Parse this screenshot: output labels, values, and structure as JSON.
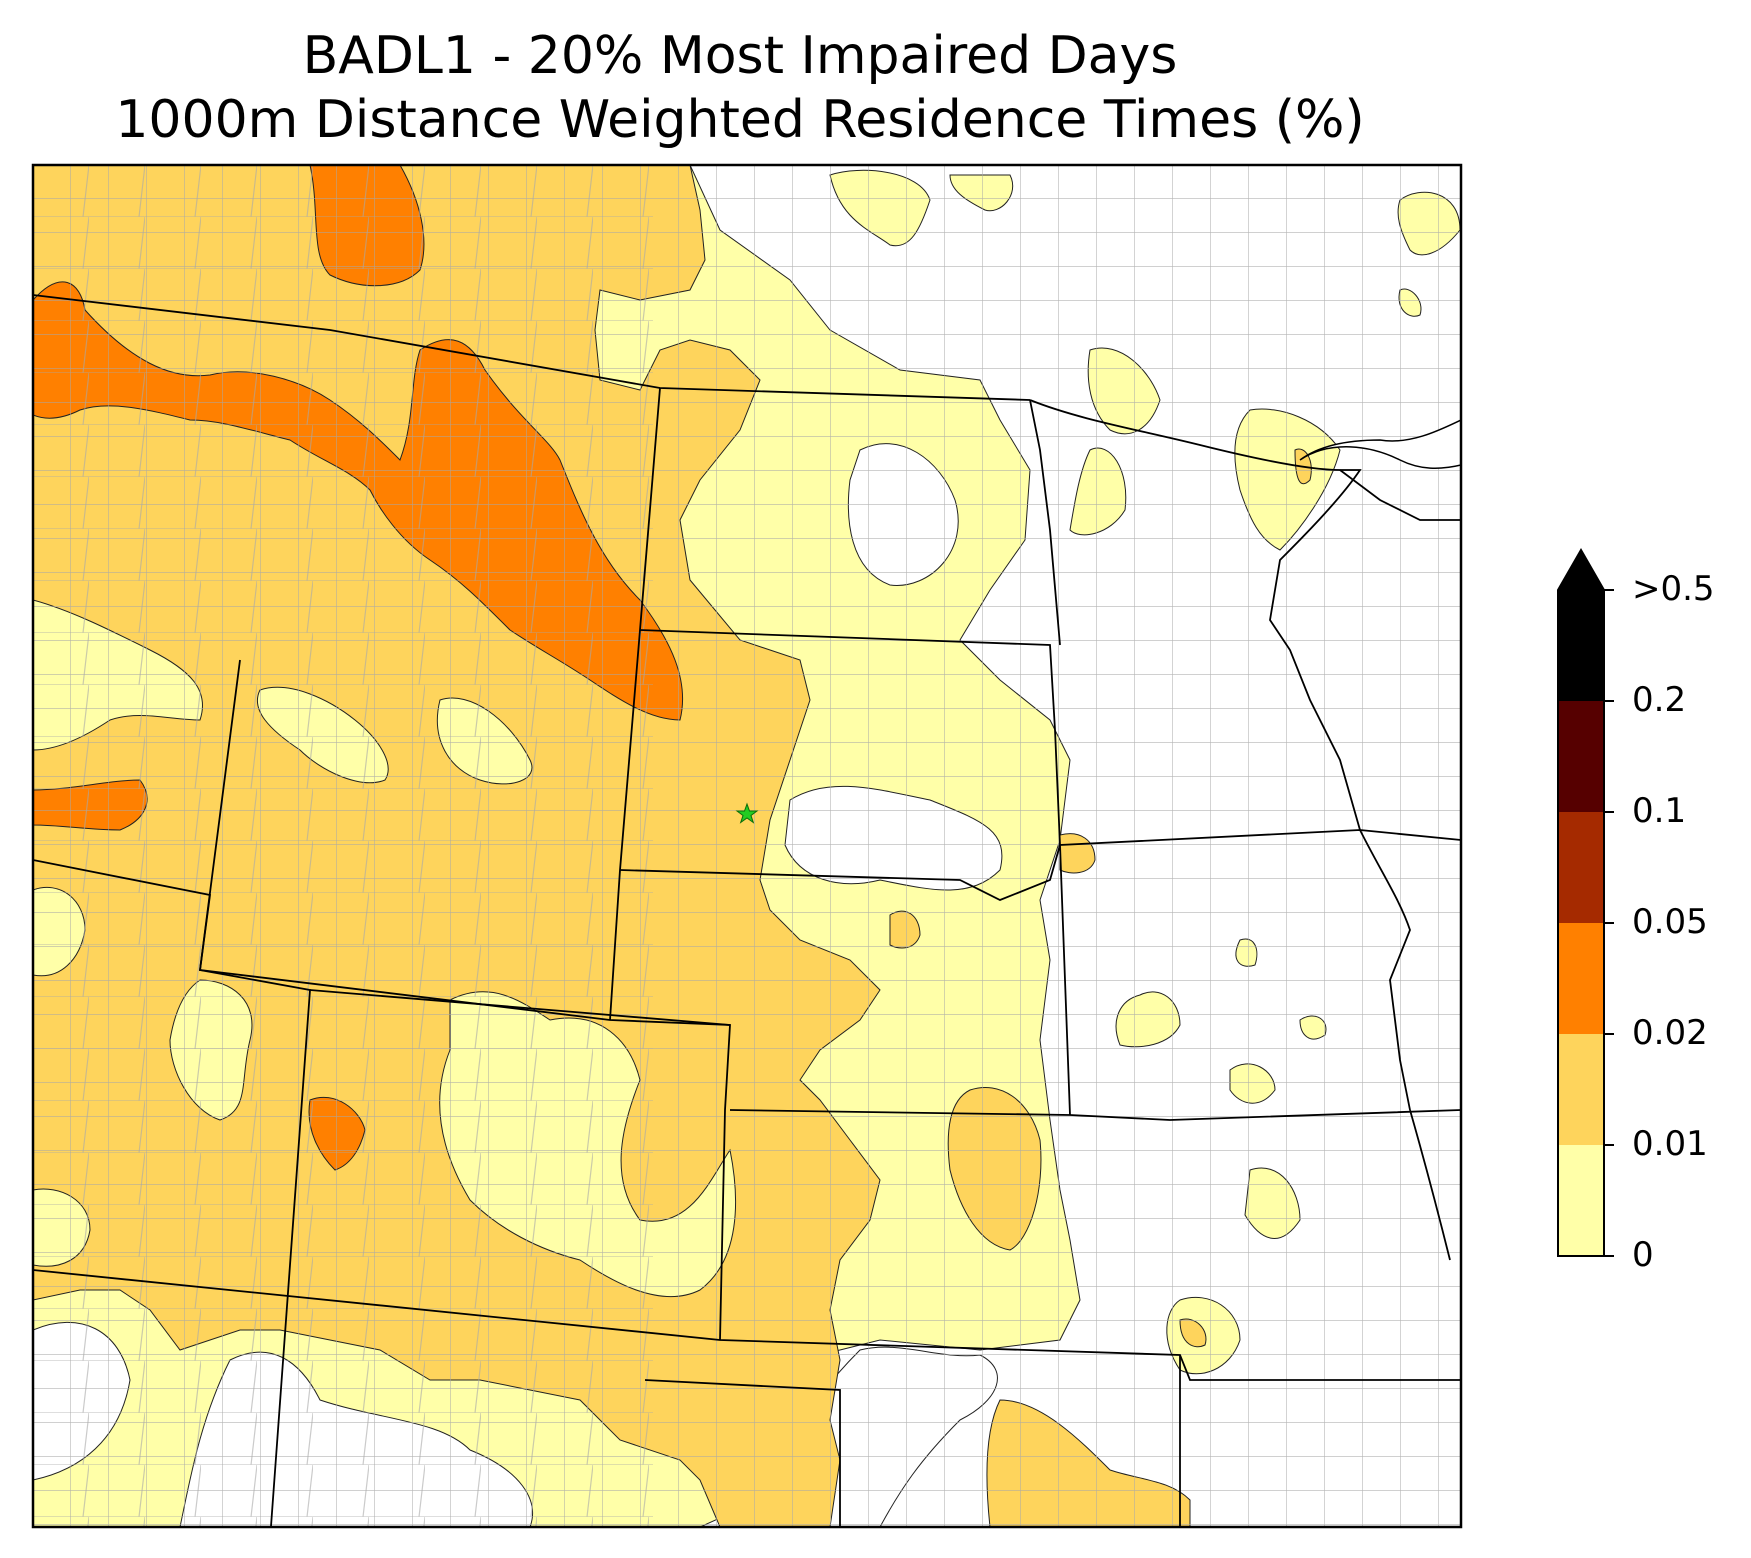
{
  "title": {
    "line1": "BADL1 - 20% Most Impaired Days",
    "line2": "1000m Distance Weighted Residence Times (%)"
  },
  "colorbar": {
    "levels": [
      {
        "label": "0",
        "color": "#ffffff"
      },
      {
        "label": "0.01",
        "color": "#ffffa8"
      },
      {
        "label": "0.02",
        "color": "#fed45c"
      },
      {
        "label": "0.05",
        "color": "#ff8000"
      },
      {
        "label": "0.1",
        "color": "#a52a00"
      },
      {
        "label": "0.2",
        "color": "#560000"
      },
      {
        "label": ">0.5",
        "color": "#000000"
      }
    ],
    "extend": "max"
  },
  "site": {
    "name": "BADL1",
    "marker_color": "#22cc22"
  },
  "colors": {
    "county_lines": "#a0a0a0",
    "state_lines": "#000000"
  }
}
